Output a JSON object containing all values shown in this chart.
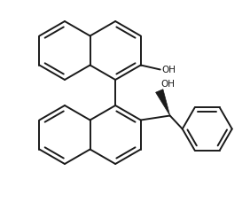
{
  "background": "#ffffff",
  "line_color": "#1a1a1a",
  "line_width": 1.4,
  "figsize": [
    2.82,
    2.37
  ],
  "dpi": 100,
  "oh1_label": "OH",
  "oh2_label": "OH",
  "font_size": 7.5
}
